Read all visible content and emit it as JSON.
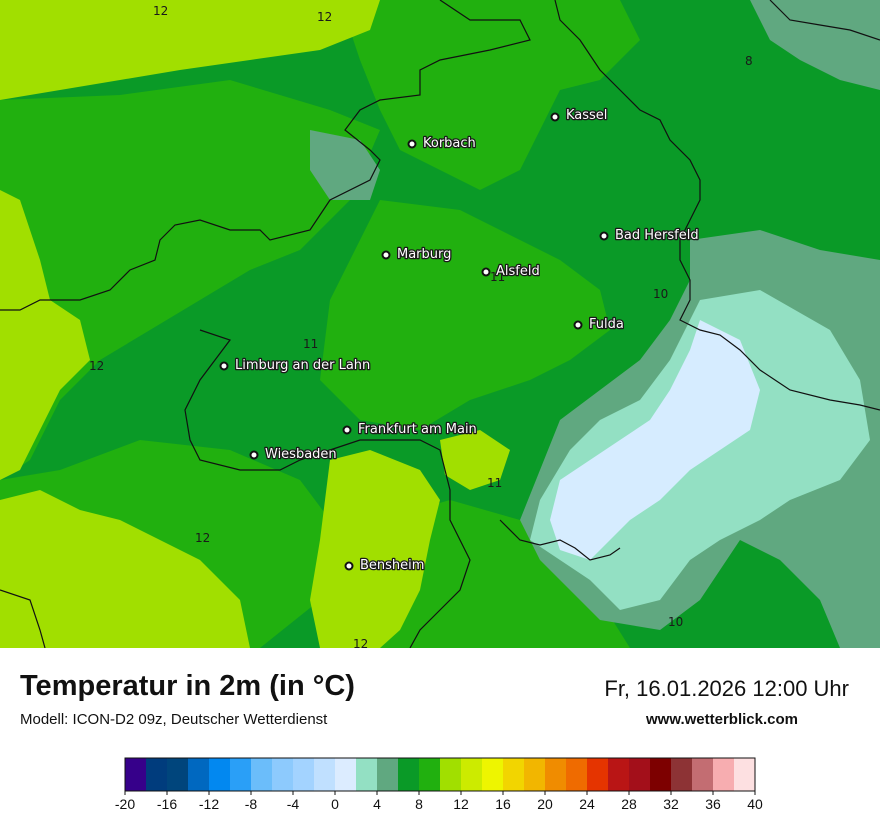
{
  "map": {
    "cities": [
      {
        "name": "Kassel"
      },
      {
        "name": "Korbach"
      },
      {
        "name": "Bad Hersfeld"
      },
      {
        "name": "Marburg"
      },
      {
        "name": "Alsfeld"
      },
      {
        "name": "Fulda"
      },
      {
        "name": "Limburg an der Lahn"
      },
      {
        "name": "Frankfurt am Main"
      },
      {
        "name": "Wiesbaden"
      },
      {
        "name": "Bensheim"
      }
    ],
    "isolines": [
      "12",
      "12",
      "8",
      "11",
      "10",
      "11",
      "12",
      "11",
      "12",
      "12",
      "10"
    ],
    "colors": {
      "t8": "#0a9a27",
      "t10": "#21b00f",
      "t12": "#a1df00",
      "t4": "#60a880",
      "t2": "#93e0c3",
      "t0": "#d6ecff",
      "border": "#111111"
    }
  },
  "header": {
    "title": "Temperatur in 2m (in °C)",
    "model": "Modell: ICON-D2 09z, Deutscher Wetterdienst",
    "datetime": "Fr, 16.01.2026 12:00 Uhr",
    "website": "www.wetterblick.com"
  },
  "legend": {
    "ticks": [
      "-20",
      "-16",
      "-12",
      "-8",
      "-4",
      "0",
      "4",
      "8",
      "12",
      "16",
      "20",
      "24",
      "28",
      "32",
      "36",
      "40"
    ],
    "colors": [
      "#36008a",
      "#003c7d",
      "#00457c",
      "#0068c0",
      "#0288f0",
      "#2a9ff7",
      "#6bbdfa",
      "#8dcafd",
      "#a3d3ff",
      "#c0e0ff",
      "#dcecff",
      "#93e0c3",
      "#60a880",
      "#0a9a27",
      "#21b00f",
      "#a1df00",
      "#cceb00",
      "#eef500",
      "#f2d500",
      "#f2b600",
      "#f08c00",
      "#ef6b00",
      "#e53400",
      "#b91515",
      "#a30f1a",
      "#7d0000",
      "#8d3335",
      "#c36d72",
      "#f7adb0",
      "#fde0e1"
    ]
  }
}
